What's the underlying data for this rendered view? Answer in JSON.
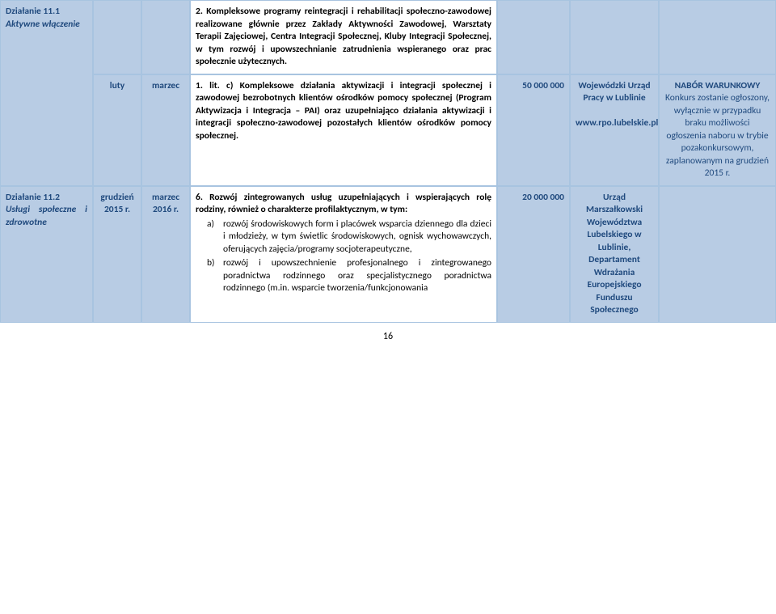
{
  "rows": {
    "r1": {
      "col1_title": "Działanie 11.1",
      "col1_sub": "Aktywne włączenie",
      "col2": "luty",
      "col3": "marzec",
      "desc_top": "2. Kompleksowe programy reintegracji i rehabilitacji społeczno-zawodowej realizowane głównie przez Zakłady Aktywności Zawodowej, Warsztaty Terapii Zajęciowej, Centra Integracji Społecznej, Kluby Integracji Społecznej, w tym rozwój i upowszechnianie zatrudnienia wspieranego oraz prac społecznie użytecznych.",
      "desc_bottom": "1. lit. c) Kompleksowe działania aktywizacji i integracji społecznej i zawodowej bezrobotnych klientów ośrodków pomocy społecznej (Program Aktywizacja i Integracja – PAI) oraz uzupełniająco działania aktywizacji i integracji społeczno-zawodowej pozostałych klientów ośrodków pomocy społecznej.",
      "amount": "50 000 000",
      "inst_line1": "Wojewódzki Urząd Pracy w Lublinie",
      "inst_line2": "www.rpo.lubelskie.pl",
      "notes_title": "NABÓR WARUNKOWY",
      "notes_body": "Konkurs zostanie ogłoszony, wyłącznie w przypadku braku możliwości ogłoszenia naboru w trybie pozakonkursowym, zaplanowanym na  grudzień 2015 r."
    },
    "r2": {
      "col1_title": "Działanie 11.2",
      "col1_sub": "Usługi społeczne i zdrowotne",
      "col2": "grudzień 2015 r.",
      "col3": "marzec 2016 r.",
      "desc_lead": "6. Rozwój zintegrowanych usług uzupełniających i wspierających rolę rodziny, również o charakterze profilaktycznym, w tym:",
      "desc_a": "rozwój środowiskowych form i placówek wsparcia dziennego dla dzieci i młodzieży, w tym świetlic środowiskowych, ognisk wychowawczych, oferujących zajęcia/programy socjoterapeutyczne,",
      "desc_b": "rozwój i upowszechnienie profesjonalnego i zintegrowanego poradnictwa rodzinnego oraz specjalistycznego poradnictwa rodzinnego (m.in. wsparcie tworzenia/funkcjonowania",
      "amount": "20 000 000",
      "inst": "Urząd Marszałkowski Województwa Lubelskiego w Lublinie, Departament Wdrażania Europejskiego Funduszu Społecznego"
    }
  },
  "page_number": "16"
}
